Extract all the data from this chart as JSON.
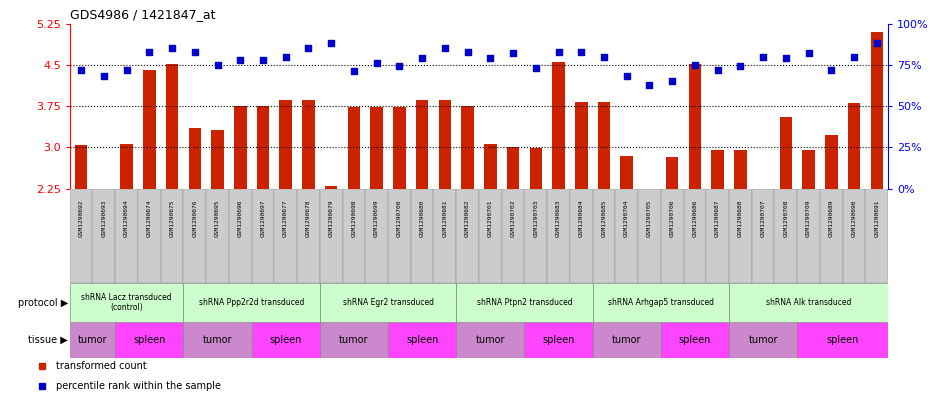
{
  "title": "GDS4986 / 1421847_at",
  "sample_ids": [
    "GSM1290692",
    "GSM1290693",
    "GSM1290694",
    "GSM1290674",
    "GSM1290675",
    "GSM1290676",
    "GSM1290695",
    "GSM1290696",
    "GSM1290697",
    "GSM1290677",
    "GSM1290678",
    "GSM1290679",
    "GSM1290698",
    "GSM1290699",
    "GSM1290700",
    "GSM1290680",
    "GSM1290681",
    "GSM1290682",
    "GSM1290701",
    "GSM1290702",
    "GSM1290703",
    "GSM1290683",
    "GSM1290684",
    "GSM1290685",
    "GSM1290704",
    "GSM1290705",
    "GSM1290706",
    "GSM1290686",
    "GSM1290687",
    "GSM1290688",
    "GSM1290707",
    "GSM1290708",
    "GSM1290709",
    "GSM1290689",
    "GSM1290690",
    "GSM1290691"
  ],
  "bar_values": [
    3.05,
    2.25,
    3.07,
    4.4,
    4.52,
    3.35,
    3.32,
    3.75,
    3.75,
    3.87,
    3.87,
    2.3,
    3.73,
    3.73,
    3.73,
    3.87,
    3.87,
    3.75,
    3.07,
    3.0,
    2.99,
    4.55,
    3.82,
    3.82,
    2.85,
    2.25,
    2.82,
    4.52,
    2.95,
    2.95,
    2.25,
    3.55,
    2.95,
    3.22,
    3.8,
    5.1
  ],
  "percentile_values": [
    72,
    68,
    72,
    83,
    85,
    83,
    75,
    78,
    78,
    80,
    85,
    88,
    71,
    76,
    74,
    79,
    85,
    83,
    79,
    82,
    73,
    83,
    83,
    80,
    68,
    63,
    65,
    75,
    72,
    74,
    80,
    79,
    82,
    72,
    80,
    88
  ],
  "ylim_left": [
    2.25,
    5.25
  ],
  "ylim_right": [
    0,
    100
  ],
  "yticks_left": [
    2.25,
    3.0,
    3.75,
    4.5,
    5.25
  ],
  "yticks_right": [
    0,
    25,
    50,
    75,
    100
  ],
  "hgrid_lines": [
    3.0,
    3.75,
    4.5
  ],
  "bar_color": "#cc2200",
  "dot_color": "#0000cc",
  "protocols": [
    {
      "label": "shRNA Lacz transduced\n(control)",
      "start": 0,
      "end": 5
    },
    {
      "label": "shRNA Ppp2r2d transduced",
      "start": 5,
      "end": 11
    },
    {
      "label": "shRNA Egr2 transduced",
      "start": 11,
      "end": 17
    },
    {
      "label": "shRNA Ptpn2 transduced",
      "start": 17,
      "end": 23
    },
    {
      "label": "shRNA Arhgap5 transduced",
      "start": 23,
      "end": 29
    },
    {
      "label": "shRNA Alk transduced",
      "start": 29,
      "end": 36
    }
  ],
  "tissues": [
    {
      "label": "tumor",
      "start": 0,
      "end": 2
    },
    {
      "label": "spleen",
      "start": 2,
      "end": 5
    },
    {
      "label": "tumor",
      "start": 5,
      "end": 8
    },
    {
      "label": "spleen",
      "start": 8,
      "end": 11
    },
    {
      "label": "tumor",
      "start": 11,
      "end": 14
    },
    {
      "label": "spleen",
      "start": 14,
      "end": 17
    },
    {
      "label": "tumor",
      "start": 17,
      "end": 20
    },
    {
      "label": "spleen",
      "start": 20,
      "end": 23
    },
    {
      "label": "tumor",
      "start": 23,
      "end": 26
    },
    {
      "label": "spleen",
      "start": 26,
      "end": 29
    },
    {
      "label": "tumor",
      "start": 29,
      "end": 32
    },
    {
      "label": "spleen",
      "start": 32,
      "end": 36
    }
  ],
  "protocol_color": "#ccffcc",
  "tumor_color": "#cc88cc",
  "spleen_color": "#ff44ff",
  "xlabels_bg": "#cccccc"
}
